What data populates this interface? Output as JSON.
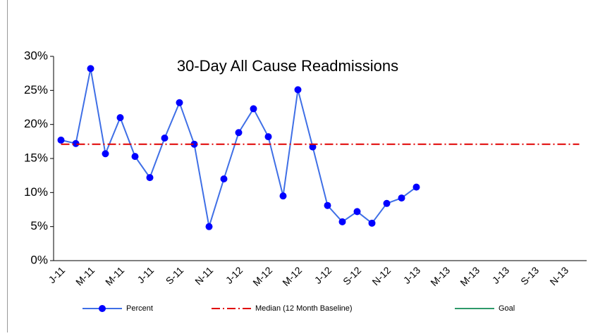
{
  "chart_data": {
    "type": "line",
    "title": "30-Day All Cause Readmissions",
    "categories": [
      "J-11",
      null,
      "M-11",
      null,
      "M-11",
      null,
      "J-11",
      null,
      "S-11",
      null,
      "N-11",
      null,
      "J-12",
      null,
      "M-12",
      null,
      "M-12",
      null,
      "J-12",
      null,
      "S-12",
      null,
      "N-12",
      null,
      "J-13",
      null,
      "M-13",
      null,
      "M-13",
      null,
      "J-13",
      null,
      "S-13",
      null,
      "N-13",
      null
    ],
    "series": [
      {
        "name": "Percent",
        "color": "#3f6fe6",
        "marker_color": "#0000ff",
        "marker": "circle",
        "dash": "solid",
        "values": [
          17.7,
          17.2,
          28.2,
          15.7,
          21.0,
          15.3,
          12.2,
          18.0,
          23.2,
          17.1,
          5.0,
          12.0,
          18.8,
          22.3,
          18.2,
          9.5,
          25.1,
          16.7,
          8.1,
          5.7,
          7.2,
          5.5,
          8.4,
          9.2,
          10.8,
          null,
          null,
          null,
          null,
          null,
          null,
          null,
          null,
          null,
          null,
          null
        ]
      },
      {
        "name": "Median (12 Month Baseline)",
        "color": "#e00000",
        "dash": "dashdot",
        "values": [
          17.1,
          17.1,
          17.1,
          17.1,
          17.1,
          17.1,
          17.1,
          17.1,
          17.1,
          17.1,
          17.1,
          17.1,
          17.1,
          17.1,
          17.1,
          17.1,
          17.1,
          17.1,
          17.1,
          17.1,
          17.1,
          17.1,
          17.1,
          17.1,
          17.1,
          17.1,
          17.1,
          17.1,
          17.1,
          17.1,
          17.1,
          17.1,
          17.1,
          17.1,
          17.1,
          17.1
        ]
      },
      {
        "name": "Goal",
        "color": "#2e9a6a",
        "dash": "solid",
        "values": [
          null,
          null,
          null,
          null,
          null,
          null,
          null,
          null,
          null,
          null,
          null,
          null,
          null,
          null,
          null,
          null,
          null,
          null,
          null,
          null,
          null,
          null,
          null,
          null,
          null,
          null,
          null,
          null,
          null,
          null,
          null,
          null,
          null,
          null,
          null,
          null
        ]
      }
    ],
    "ylim": [
      0,
      30
    ],
    "yticks": [
      {
        "value": 0,
        "label": "0%"
      },
      {
        "value": 5,
        "label": "5%"
      },
      {
        "value": 10,
        "label": "10%"
      },
      {
        "value": 15,
        "label": "15%"
      },
      {
        "value": 20,
        "label": "20%"
      },
      {
        "value": 25,
        "label": "25%"
      },
      {
        "value": 30,
        "label": "30%"
      }
    ],
    "grid": false,
    "legend": "bottom"
  }
}
